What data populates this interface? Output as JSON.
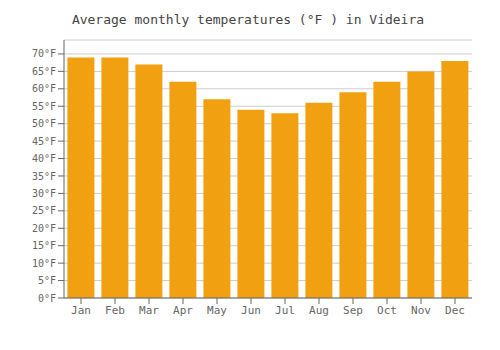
{
  "chart_data": {
    "type": "bar",
    "title": "Average monthly temperatures (°F ) in Videira",
    "categories": [
      "Jan",
      "Feb",
      "Mar",
      "Apr",
      "May",
      "Jun",
      "Jul",
      "Aug",
      "Sep",
      "Oct",
      "Nov",
      "Dec"
    ],
    "values": [
      69,
      69,
      67,
      62,
      57,
      54,
      53,
      56,
      59,
      62,
      65,
      68
    ],
    "color": "#F0A010",
    "ylim": [
      0,
      74
    ],
    "yticks": [
      {
        "value": 0,
        "label": "0°F"
      },
      {
        "value": 5,
        "label": "5°F"
      },
      {
        "value": 10,
        "label": "10°F"
      },
      {
        "value": 15,
        "label": "15°F"
      },
      {
        "value": 20,
        "label": "20°F"
      },
      {
        "value": 25,
        "label": "25°F"
      },
      {
        "value": 30,
        "label": "30°F"
      },
      {
        "value": 35,
        "label": "35°F"
      },
      {
        "value": 40,
        "label": "40°F"
      },
      {
        "value": 45,
        "label": "45°F"
      },
      {
        "value": 50,
        "label": "50°F"
      },
      {
        "value": 55,
        "label": "55°F"
      },
      {
        "value": 60,
        "label": "60°F"
      },
      {
        "value": 65,
        "label": "65°F"
      },
      {
        "value": 70,
        "label": "70°F"
      }
    ],
    "grid": true
  }
}
